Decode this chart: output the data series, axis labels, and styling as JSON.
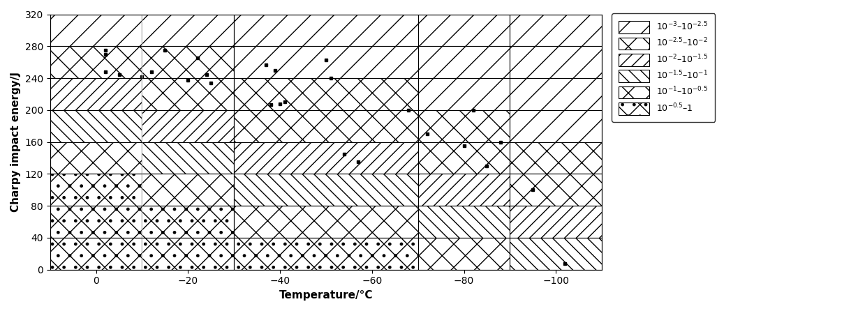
{
  "xlabel": "Temperature/°C",
  "ylabel": "Charpy impact energy/J",
  "xlim": [
    10,
    -110
  ],
  "ylim": [
    0,
    320
  ],
  "xticks": [
    0,
    -20,
    -40,
    -60,
    -80,
    -100
  ],
  "yticks": [
    0,
    40,
    80,
    120,
    160,
    200,
    240,
    280,
    320
  ],
  "data_points": [
    [
      -2,
      275
    ],
    [
      -2,
      270
    ],
    [
      -2,
      248
    ],
    [
      -5,
      244
    ],
    [
      -10,
      242
    ],
    [
      -12,
      248
    ],
    [
      -15,
      275
    ],
    [
      -20,
      237
    ],
    [
      -22,
      265
    ],
    [
      -24,
      244
    ],
    [
      -25,
      234
    ],
    [
      -38,
      207
    ],
    [
      -39,
      250
    ],
    [
      -40,
      208
    ],
    [
      -41,
      210
    ],
    [
      -37,
      257
    ],
    [
      -50,
      263
    ],
    [
      -51,
      240
    ],
    [
      -54,
      145
    ],
    [
      -57,
      135
    ],
    [
      -68,
      200
    ],
    [
      -72,
      170
    ],
    [
      -80,
      155
    ],
    [
      -82,
      200
    ],
    [
      -85,
      130
    ],
    [
      -88,
      160
    ],
    [
      -95,
      100
    ],
    [
      -102,
      8
    ]
  ],
  "legend_labels": [
    "10$^{-3}$–10$^{-2.5}$",
    "10$^{-2.5}$–10$^{-2}$",
    "10$^{-2}$–10$^{-1.5}$",
    "10$^{-1.5}$–10$^{-1}$",
    "10$^{-1}$–10$^{-0.5}$",
    "10$^{-0.5}$–1"
  ],
  "x_dividers": [
    10,
    -10,
    -30,
    -70,
    -90,
    -110
  ],
  "y_dividers": [
    0,
    40,
    80,
    120,
    160,
    200,
    240,
    280,
    320
  ],
  "grid_col_row_hatch": [
    [
      0,
      0,
      0,
      0,
      0
    ],
    [
      1,
      1,
      0,
      0,
      0
    ],
    [
      2,
      1,
      1,
      0,
      0
    ],
    [
      3,
      2,
      1,
      1,
      0
    ],
    [
      4,
      3,
      2,
      1,
      1
    ],
    [
      5,
      4,
      3,
      2,
      1
    ],
    [
      5,
      5,
      4,
      3,
      2
    ],
    [
      5,
      5,
      5,
      4,
      3
    ]
  ],
  "gray_vline": -10
}
